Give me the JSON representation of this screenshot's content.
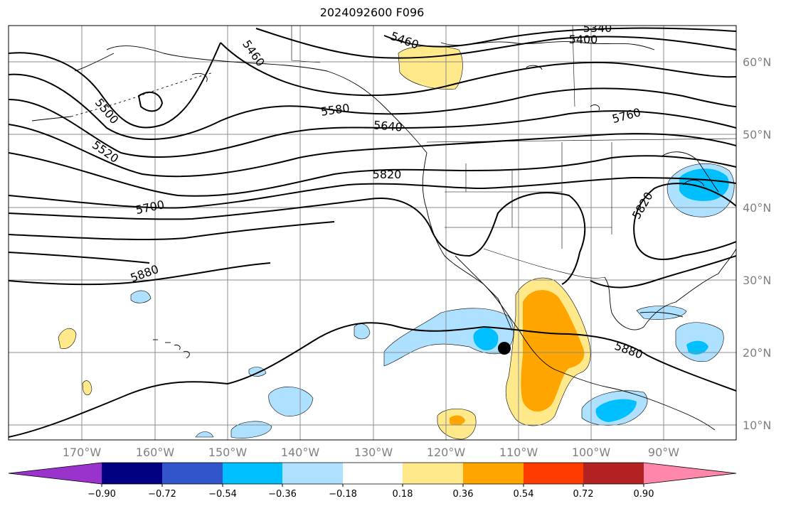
{
  "title": "2024092600 F096",
  "map": {
    "lat_labels": [
      "60°N",
      "50°N",
      "40°N",
      "30°N",
      "20°N",
      "10°N"
    ],
    "lon_labels": [
      "170°W",
      "160°W",
      "150°W",
      "140°W",
      "130°W",
      "120°W",
      "110°W",
      "100°W",
      "90°W"
    ],
    "contour_labels": [
      "5340",
      "5400",
      "5460",
      "5460",
      "5500",
      "5520",
      "5580",
      "5640",
      "5700",
      "5760",
      "5820",
      "5820",
      "5880",
      "5880"
    ],
    "colors": {
      "line": "#000000",
      "grid": "#8c8c8c",
      "neg_light": "#aee0ff",
      "neg_mid": "#00bfff",
      "pos_light": "#ffe98a",
      "pos_mid": "#ffa500"
    },
    "marker": "black-dot"
  },
  "colorbar": {
    "colors": [
      "#9933cc",
      "#000080",
      "#3355cc",
      "#00bfff",
      "#aee0ff",
      "#ffffff",
      "#ffe98a",
      "#ffa500",
      "#ff3c00",
      "#b22222",
      "#ff88aa"
    ],
    "ticks": [
      "−0.90",
      "−0.72",
      "−0.54",
      "−0.36",
      "−0.18",
      "0.18",
      "0.36",
      "0.54",
      "0.72",
      "0.90"
    ]
  }
}
